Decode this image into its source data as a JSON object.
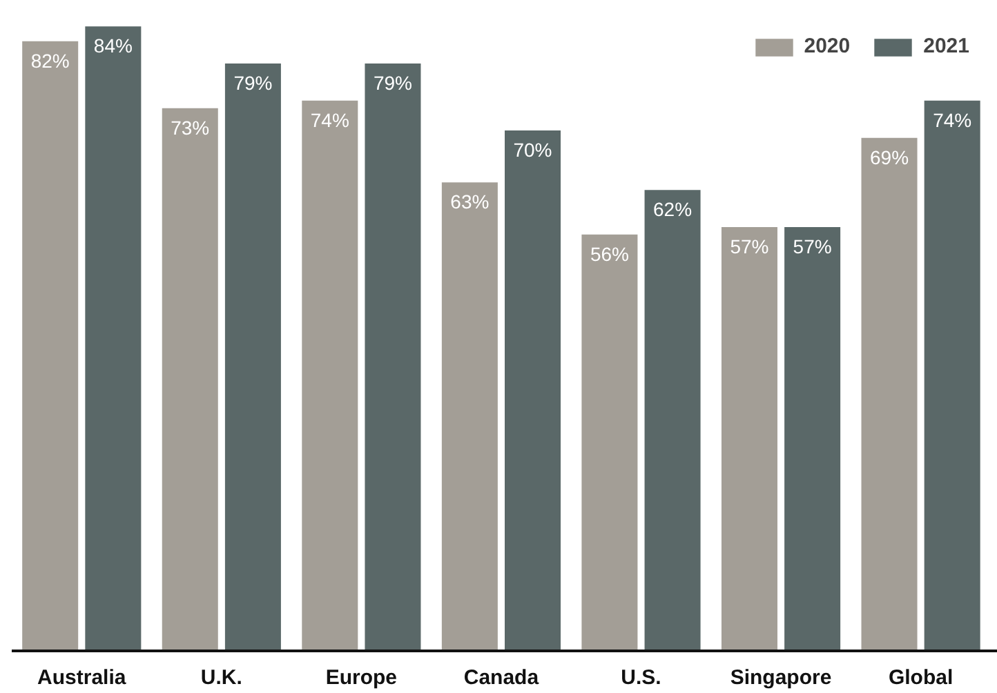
{
  "chart_data": {
    "type": "bar",
    "categories": [
      "Australia",
      "U.K.",
      "Europe",
      "Canada",
      "U.S.",
      "Singapore",
      "Global"
    ],
    "series": [
      {
        "name": "2020",
        "color": "#a39e96",
        "values": [
          82,
          73,
          74,
          63,
          56,
          57,
          69
        ],
        "value_labels": [
          "82%",
          "73%",
          "74%",
          "63%",
          "56%",
          "57%",
          "69%"
        ]
      },
      {
        "name": "2021",
        "color": "#5a6868",
        "values": [
          84,
          79,
          79,
          70,
          62,
          57,
          74
        ],
        "value_labels": [
          "84%",
          "79%",
          "79%",
          "70%",
          "62%",
          "57%",
          "74%"
        ]
      }
    ],
    "legend": "top right",
    "grid": false
  }
}
